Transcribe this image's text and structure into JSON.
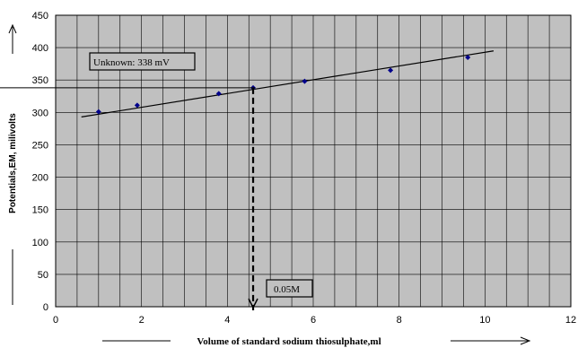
{
  "chart_data": {
    "type": "scatter",
    "xlabel": "Volume of standard sodium thiosulphate,ml",
    "ylabel": "Potentials,EM, milivolts",
    "xlim": [
      0,
      12
    ],
    "ylim": [
      0,
      450
    ],
    "x_ticks": [
      0,
      2,
      4,
      6,
      8,
      10,
      12
    ],
    "y_ticks": [
      0,
      50,
      100,
      150,
      200,
      250,
      300,
      350,
      400,
      450
    ],
    "x_tick_labels": [
      "0",
      "2",
      "4",
      "6",
      "8",
      "10",
      "12"
    ],
    "y_tick_labels": [
      "0",
      "50",
      "100",
      "150",
      "200",
      "250",
      "300",
      "350",
      "400",
      "450"
    ],
    "grid": true,
    "plot_background": "#c0c0c0",
    "point_color": "#00008b",
    "points": [
      {
        "x": 1.0,
        "y": 301
      },
      {
        "x": 1.9,
        "y": 311
      },
      {
        "x": 3.8,
        "y": 329
      },
      {
        "x": 4.6,
        "y": 338
      },
      {
        "x": 5.8,
        "y": 348
      },
      {
        "x": 7.8,
        "y": 365
      },
      {
        "x": 9.6,
        "y": 385
      }
    ],
    "trendline": {
      "x": [
        0.6,
        10.2
      ],
      "y": [
        293,
        395
      ]
    },
    "annotations": {
      "unknown_label": "Unknown: 338 mV",
      "unknown_value": 338,
      "concentration_label": "0.05M",
      "intersection_x": 4.6
    }
  }
}
